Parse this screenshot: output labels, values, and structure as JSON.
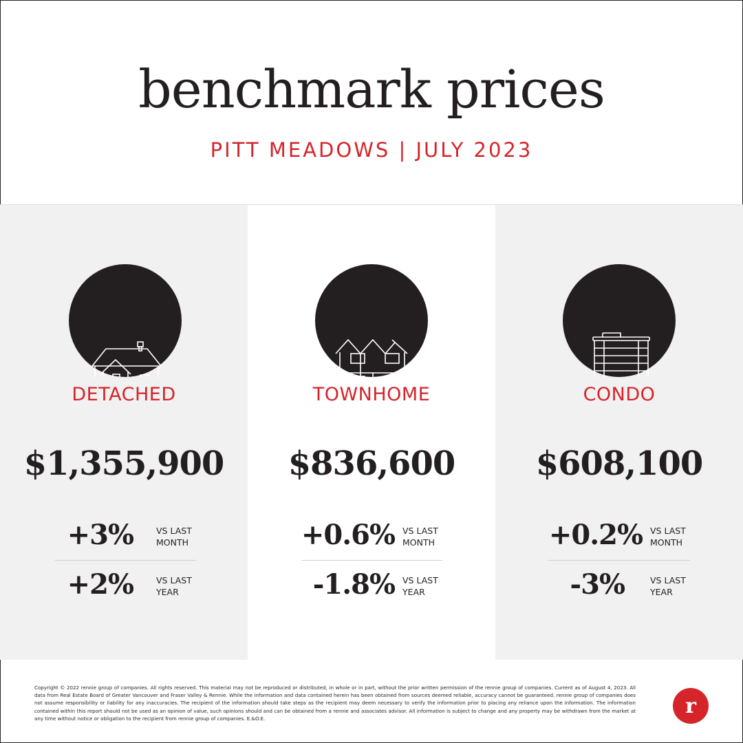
{
  "header": {
    "title": "benchmark prices",
    "subtitle": "PITT MEADOWS | JULY 2023"
  },
  "columns": [
    {
      "icon": "detached-house-icon",
      "type": "DETACHED",
      "price": "$1,355,900",
      "month_change": "+3%",
      "month_label_1": "VS LAST",
      "month_label_2": "MONTH",
      "year_change": "+2%",
      "year_label_1": "VS LAST",
      "year_label_2": "YEAR"
    },
    {
      "icon": "townhome-icon",
      "type": "TOWNHOME",
      "price": "$836,600",
      "month_change": "+0.6%",
      "month_label_1": "VS LAST",
      "month_label_2": "MONTH",
      "year_change": "-1.8%",
      "year_label_1": "VS LAST",
      "year_label_2": "YEAR"
    },
    {
      "icon": "condo-building-icon",
      "type": "CONDO",
      "price": "$608,100",
      "month_change": "+0.2%",
      "month_label_1": "VS LAST",
      "month_label_2": "MONTH",
      "year_change": "-3%",
      "year_label_1": "VS LAST",
      "year_label_2": "YEAR"
    }
  ],
  "footer": {
    "disclaimer": "Copyright © 2022 rennie group of companies. All rights reserved. This material may not be reproduced or distributed, in whole or in part, without the prior written permission of the rennie group of companies. Current as of August 4, 2023. All data from Real Estate Board of Greater Vancouver and Fraser Valley & Rennie. While the information and data contained herein has been obtained from sources deemed reliable, accuracy cannot be guaranteed. rennie group of companies does not assume responsibility or liability for any inaccuracies. The recipient of the information should take steps as the recipient may deem necessary to verify the information prior to placing any reliance upon the information. The information contained within this report should not be used as an opinion of value, such opinions should and can be obtained from a rennie and associates advisor. All information is subject to change and any property may be withdrawn from the market at any time without notice or obligation to the recipient from rennie group of companies. E.&O.E.",
    "logo_letter": "r"
  },
  "colors": {
    "accent_red": "#d5242a",
    "dark": "#231f20",
    "panel_grey": "#f1f1f1"
  }
}
